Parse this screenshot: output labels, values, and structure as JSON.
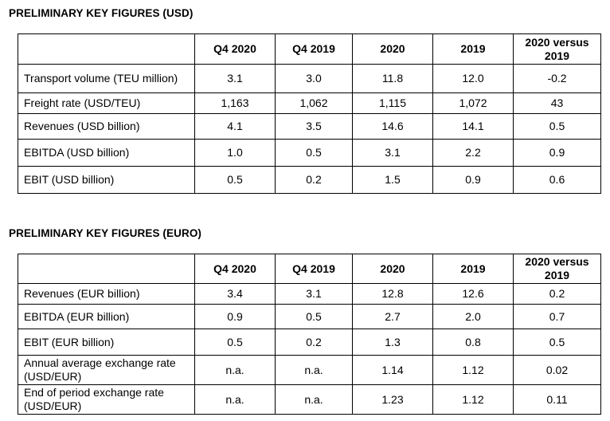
{
  "usd": {
    "title": "PRELIMINARY KEY FIGURES (USD)",
    "headers": [
      "",
      "Q4 2020",
      "Q4 2019",
      "2020",
      "2019",
      "2020 versus 2019"
    ],
    "rows": [
      {
        "label": "Transport volume (TEU million)",
        "values": [
          "3.1",
          "3.0",
          "11.8",
          "12.0",
          "-0.2"
        ]
      },
      {
        "label": "Freight rate (USD/TEU)",
        "values": [
          "1,163",
          "1,062",
          "1,115",
          "1,072",
          "43"
        ]
      },
      {
        "label": "Revenues (USD billion)",
        "values": [
          "4.1",
          "3.5",
          "14.6",
          "14.1",
          "0.5"
        ]
      },
      {
        "label": "EBITDA (USD billion)",
        "values": [
          "1.0",
          "0.5",
          "3.1",
          "2.2",
          "0.9"
        ]
      },
      {
        "label": "EBIT (USD billion)",
        "values": [
          "0.5",
          "0.2",
          "1.5",
          "0.9",
          "0.6"
        ]
      }
    ]
  },
  "euro": {
    "title": "PRELIMINARY KEY FIGURES (EURO)",
    "headers": [
      "",
      "Q4 2020",
      "Q4 2019",
      "2020",
      "2019",
      "2020 versus 2019"
    ],
    "rows": [
      {
        "label": "Revenues (EUR billion)",
        "values": [
          "3.4",
          "3.1",
          "12.8",
          "12.6",
          "0.2"
        ]
      },
      {
        "label": "EBITDA (EUR billion)",
        "values": [
          "0.9",
          "0.5",
          "2.7",
          "2.0",
          "0.7"
        ]
      },
      {
        "label": "EBIT (EUR billion)",
        "values": [
          "0.5",
          "0.2",
          "1.3",
          "0.8",
          "0.5"
        ]
      },
      {
        "label": "Annual average exchange rate (USD/EUR)",
        "values": [
          "n.a.",
          "n.a.",
          "1.14",
          "1.12",
          "0.02"
        ]
      },
      {
        "label": "End of period exchange rate (USD/EUR)",
        "values": [
          "n.a.",
          "n.a.",
          "1.23",
          "1.12",
          "0.11"
        ]
      }
    ]
  }
}
